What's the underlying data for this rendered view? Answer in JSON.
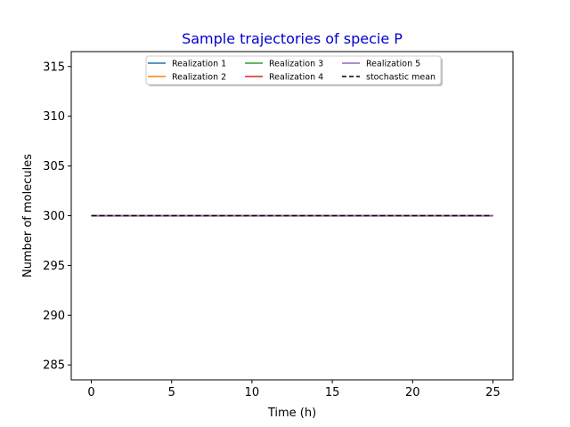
{
  "chart_data": {
    "type": "line",
    "title": "Sample trajectories of specie P",
    "title_color": "#0000cc",
    "xlabel": "Time (h)",
    "ylabel": "Number of molecules",
    "xlim": [
      -1.25,
      26.25
    ],
    "ylim": [
      283.5,
      316.5
    ],
    "x_ticks": [
      0,
      5,
      10,
      15,
      20,
      25
    ],
    "y_ticks": [
      285,
      290,
      295,
      300,
      305,
      310,
      315
    ],
    "grid": false,
    "legend_placement": "top-center",
    "legend_columns": 3,
    "series": [
      {
        "name": "Realization 1",
        "color": "#1f77b4",
        "style": "solid",
        "x": [
          0,
          25
        ],
        "y": [
          300,
          300
        ]
      },
      {
        "name": "Realization 2",
        "color": "#ff7f0e",
        "style": "solid",
        "x": [
          0,
          25
        ],
        "y": [
          300,
          300
        ]
      },
      {
        "name": "Realization 3",
        "color": "#2ca02c",
        "style": "solid",
        "x": [
          0,
          25
        ],
        "y": [
          300,
          300
        ]
      },
      {
        "name": "Realization 4",
        "color": "#d62728",
        "style": "solid",
        "x": [
          0,
          25
        ],
        "y": [
          300,
          300
        ]
      },
      {
        "name": "Realization 5",
        "color": "#9467bd",
        "style": "solid",
        "x": [
          0,
          25
        ],
        "y": [
          300,
          300
        ]
      },
      {
        "name": "stochastic mean",
        "color": "#000000",
        "style": "dashed",
        "x": [
          0,
          25
        ],
        "y": [
          300,
          300
        ]
      }
    ]
  }
}
